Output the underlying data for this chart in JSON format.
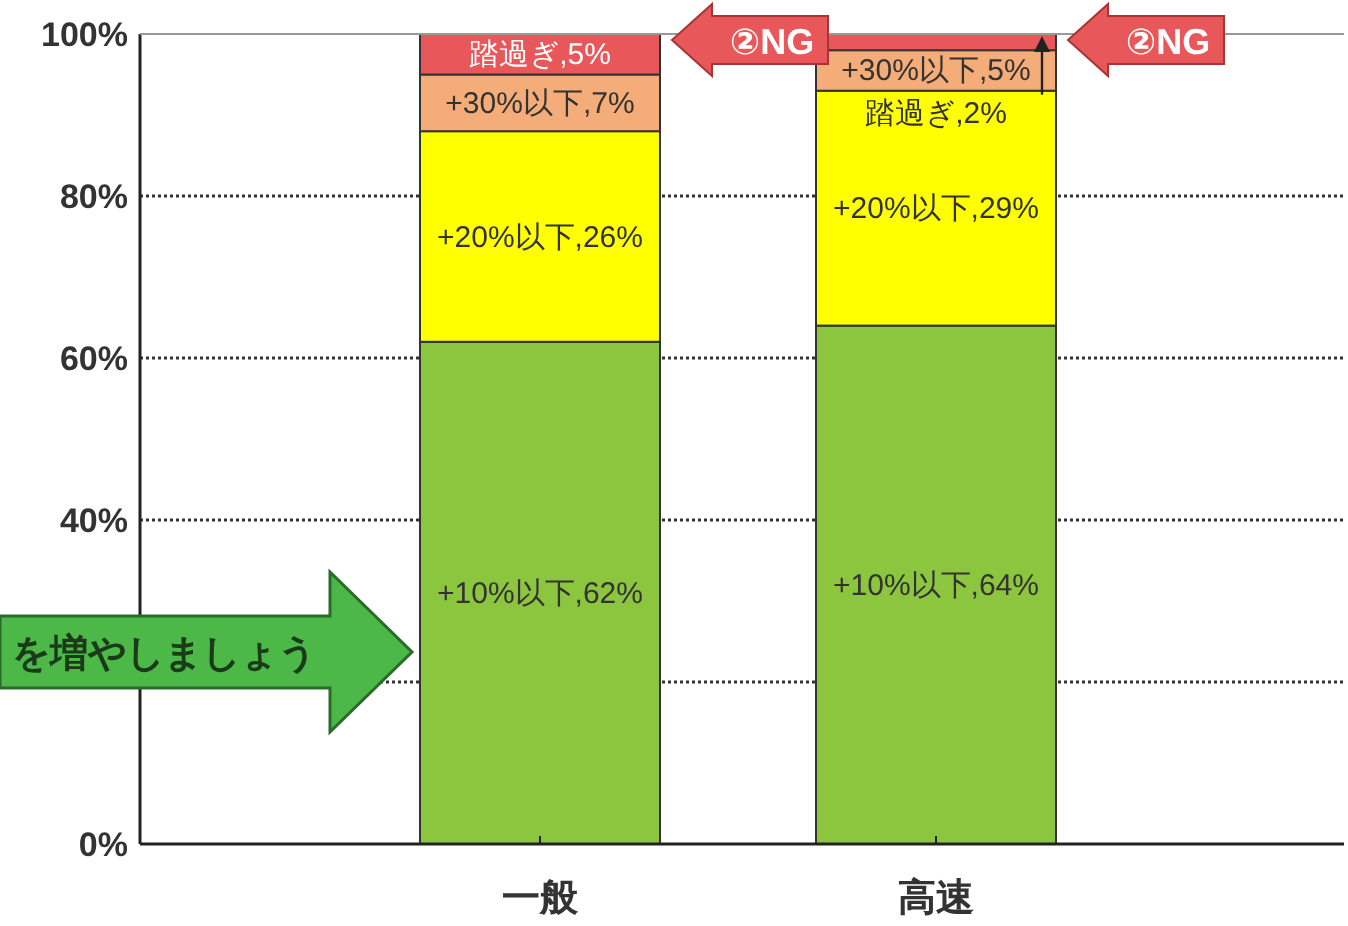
{
  "chart_data": {
    "type": "bar",
    "stacked": true,
    "categories": [
      "一般",
      "高速"
    ],
    "series": [
      {
        "color": "#8cc63f",
        "values": [
          62,
          64
        ],
        "value_labels": [
          "+10%以下,62%",
          "+10%以下,64%"
        ]
      },
      {
        "color": "#ffff00",
        "values": [
          26,
          29
        ],
        "value_labels": [
          "+20%以下,26%",
          "+20%以下,29%"
        ]
      },
      {
        "color": "#f4ad78",
        "values": [
          7,
          5
        ],
        "value_labels": [
          "+30%以下,7%",
          "+30%以下,5%"
        ]
      },
      {
        "color": "#e8585a",
        "values": [
          5,
          2
        ],
        "value_labels": [
          "踏過ぎ,5%",
          "踏過ぎ,2%"
        ]
      }
    ],
    "ylim": [
      0,
      100
    ],
    "yticks": [
      {
        "value": 0,
        "label": "0%"
      },
      {
        "value": 20,
        "label": null
      },
      {
        "value": 40,
        "label": "40%"
      },
      {
        "value": 60,
        "label": "60%"
      },
      {
        "value": 80,
        "label": "80%"
      },
      {
        "value": 100,
        "label": "100%"
      }
    ],
    "grid": "y",
    "annotations": [
      "②NG",
      "②NG",
      "を増やしましょう"
    ]
  }
}
